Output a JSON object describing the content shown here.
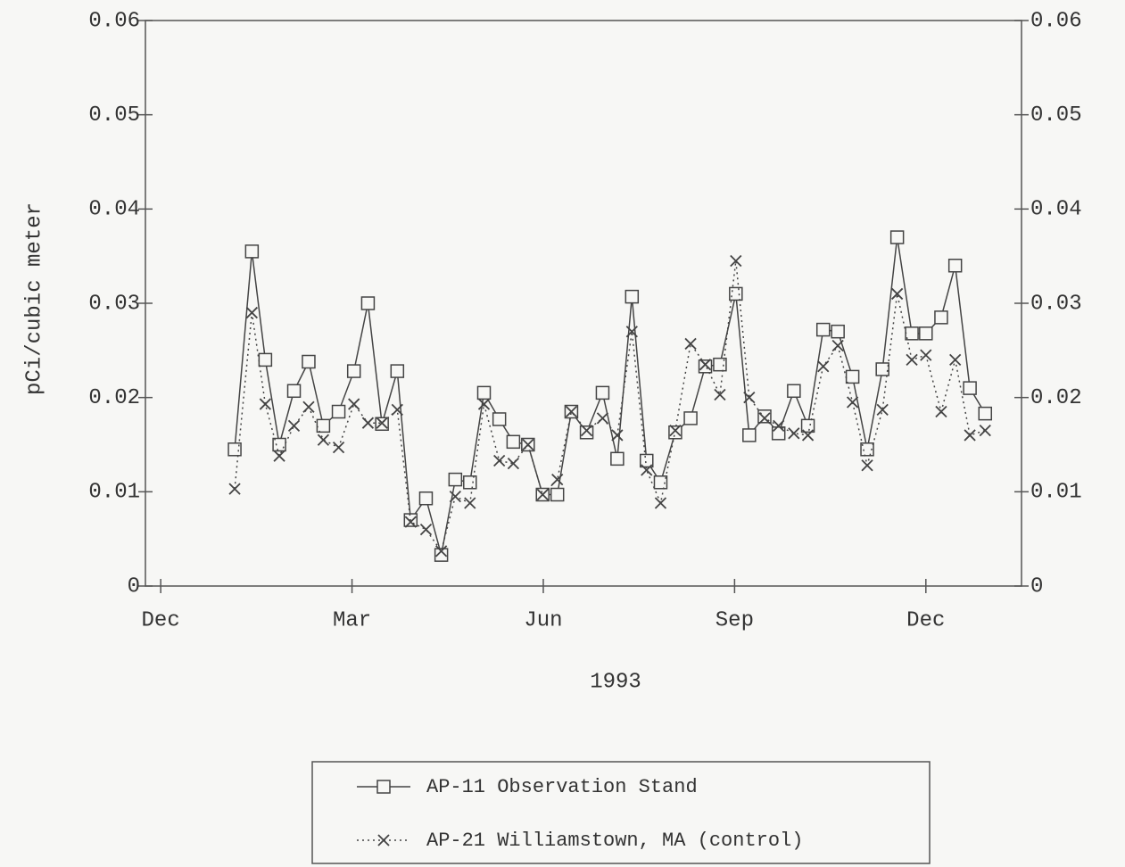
{
  "chart_data": {
    "type": "line",
    "xlabel": "1993",
    "ylabel": "pCi/cubic meter",
    "x": [
      1.16,
      1.43,
      1.64,
      1.86,
      2.09,
      2.32,
      2.55,
      2.79,
      3.03,
      3.25,
      3.47,
      3.71,
      3.92,
      4.16,
      4.4,
      4.62,
      4.85,
      5.07,
      5.31,
      5.53,
      5.76,
      5.99,
      6.22,
      6.44,
      6.68,
      6.93,
      7.16,
      7.39,
      7.62,
      7.84,
      8.07,
      8.31,
      8.54,
      8.77,
      9.02,
      9.23,
      9.47,
      9.69,
      9.93,
      10.15,
      10.39,
      10.62,
      10.85,
      11.08,
      11.32,
      11.55,
      11.78,
      12.0,
      12.24,
      12.46,
      12.69,
      12.93
    ],
    "series": [
      {
        "name": "AP-11 Observation Stand",
        "color": "#444444",
        "marker": "square",
        "dash": "solid",
        "values": [
          0.0145,
          0.0355,
          0.024,
          0.015,
          0.0207,
          0.0238,
          0.017,
          0.0185,
          0.0228,
          0.03,
          0.0172,
          0.0228,
          0.007,
          0.0093,
          0.0033,
          0.0113,
          0.011,
          0.0205,
          0.0177,
          0.0153,
          0.015,
          0.0097,
          0.0097,
          0.0185,
          0.0163,
          0.0205,
          0.0135,
          0.0307,
          0.0133,
          0.011,
          0.0163,
          0.0178,
          0.0233,
          0.0235,
          0.031,
          0.016,
          0.018,
          0.0162,
          0.0207,
          0.017,
          0.0272,
          0.027,
          0.0222,
          0.0145,
          0.023,
          0.037,
          0.0268,
          0.0268,
          0.0285,
          0.034,
          0.021,
          0.0183
        ]
      },
      {
        "name": "AP-21 Williamstown, MA (control)",
        "color": "#444444",
        "marker": "x",
        "dash": "dotted",
        "values": [
          0.0103,
          0.029,
          0.0193,
          0.0138,
          0.017,
          0.019,
          0.0155,
          0.0147,
          0.0193,
          0.0173,
          0.0173,
          0.0187,
          0.0068,
          0.006,
          0.0037,
          0.0095,
          0.0088,
          0.0193,
          0.0133,
          0.013,
          0.015,
          0.0097,
          0.0113,
          0.0185,
          0.0165,
          0.0178,
          0.016,
          0.027,
          0.0123,
          0.0088,
          0.0165,
          0.0257,
          0.0235,
          0.0203,
          0.0345,
          0.02,
          0.0178,
          0.017,
          0.0162,
          0.016,
          0.0233,
          0.0255,
          0.0195,
          0.0128,
          0.0187,
          0.031,
          0.024,
          0.0245,
          0.0185,
          0.024,
          0.016,
          0.0165
        ]
      }
    ],
    "xlim": [
      -0.24,
      13.5
    ],
    "xticks": [
      {
        "value": 0,
        "label": "Dec"
      },
      {
        "value": 3,
        "label": "Mar"
      },
      {
        "value": 6,
        "label": "Jun"
      },
      {
        "value": 9,
        "label": "Sep"
      },
      {
        "value": 12,
        "label": "Dec"
      }
    ],
    "ylim": [
      0,
      0.06
    ],
    "yticks": [
      0,
      0.01,
      0.02,
      0.03,
      0.04,
      0.05,
      0.06
    ],
    "legend": "bottom"
  }
}
